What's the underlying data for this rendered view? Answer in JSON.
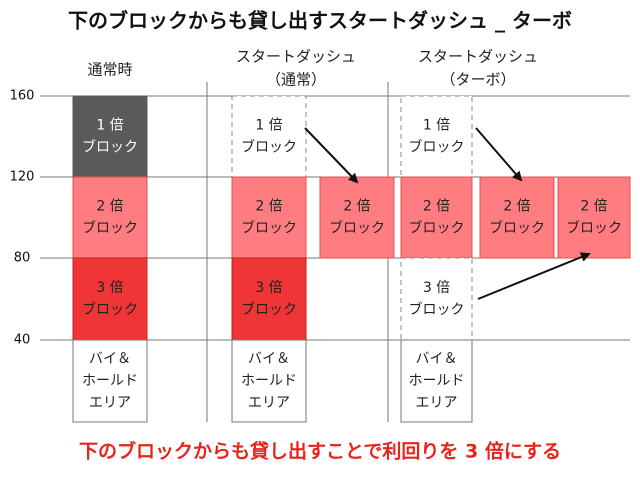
{
  "title": "下のブロックからも貸し出すスタートダッシュ _ ターボ",
  "headers": [
    {
      "lines": [
        "通常時"
      ]
    },
    {
      "lines": [
        "スタートダッシュ",
        "（通常）"
      ]
    },
    {
      "lines": [
        "スタートダッシュ",
        "（ターボ）"
      ]
    }
  ],
  "axis_labels": [
    160,
    120,
    80,
    40
  ],
  "blocks": [
    {
      "lines": [
        "1 倍",
        "ブロック"
      ]
    },
    {
      "lines": [
        "2 倍",
        "ブロック"
      ]
    },
    {
      "lines": [
        "3 倍",
        "ブロック"
      ]
    },
    {
      "lines": [
        "バイ＆",
        "ホールド",
        "エリア"
      ]
    },
    {
      "lines": [
        "1 倍",
        "ブロック"
      ]
    },
    {
      "lines": [
        "2 倍",
        "ブロック"
      ]
    },
    {
      "lines": [
        "3 倍",
        "ブロック"
      ]
    },
    {
      "lines": [
        "バイ＆",
        "ホールド",
        "エリア"
      ]
    },
    {
      "lines": [
        "2 倍",
        "ブロック"
      ]
    },
    {
      "lines": [
        "1 倍",
        "ブロック"
      ]
    },
    {
      "lines": [
        "2 倍",
        "ブロック"
      ]
    },
    {
      "lines": [
        "3 倍",
        "ブロック"
      ]
    },
    {
      "lines": [
        "バイ＆",
        "ホールド",
        "エリア"
      ]
    },
    {
      "lines": [
        "2 倍",
        "ブロック"
      ]
    },
    {
      "lines": [
        "2 倍",
        "ブロック"
      ]
    }
  ],
  "footer": "下のブロックからも貸し出すことで利回りを 3 倍にする"
}
